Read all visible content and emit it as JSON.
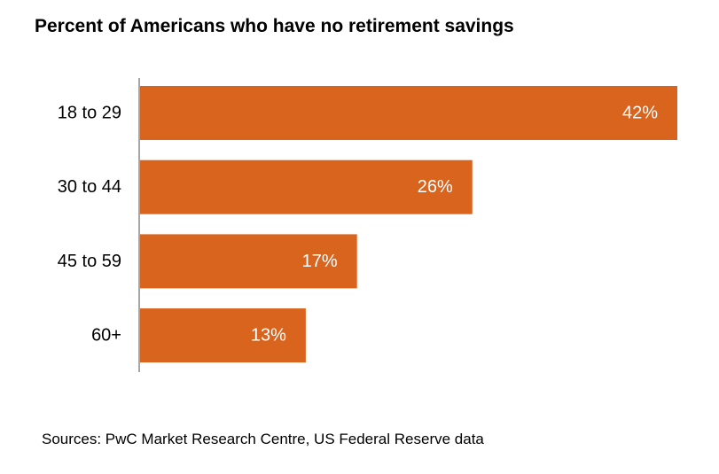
{
  "chart_data": {
    "type": "bar",
    "orientation": "horizontal",
    "title": "Percent of Americans who have no retirement savings",
    "categories": [
      "18 to 29",
      "30 to 44",
      "45 to 59",
      "60+"
    ],
    "values": [
      42,
      26,
      17,
      13
    ],
    "data_labels": [
      "42%",
      "26%",
      "17%",
      "13%"
    ],
    "xlim": [
      0,
      42
    ],
    "grid": false,
    "legend": "none",
    "bar_color": "#D9641E",
    "axis_color": "#A6A6A6",
    "data_label_color": "#FFFFFF",
    "source": "Sources: PwC Market Research Centre, US Federal Reserve data"
  }
}
